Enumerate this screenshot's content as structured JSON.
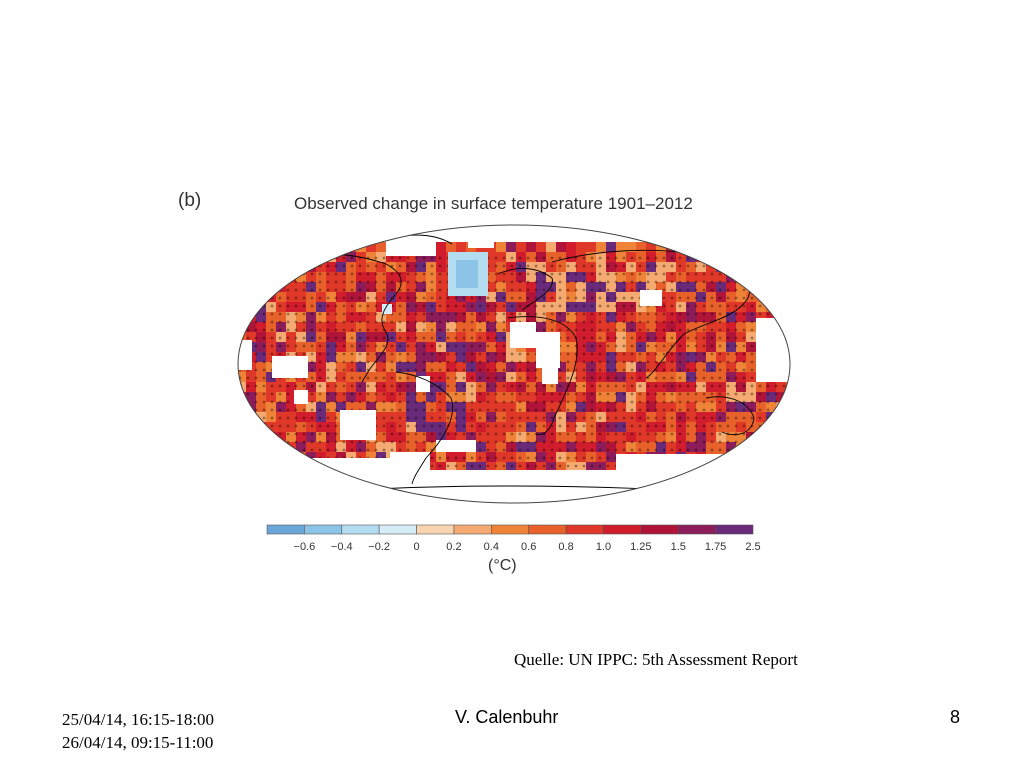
{
  "figure": {
    "panel_label": "(b)",
    "title": "Observed change in surface temperature 1901–2012"
  },
  "chart_data": {
    "type": "heatmap",
    "title": "Observed change in surface temperature 1901–2012",
    "legend": {
      "unit": "(°C)",
      "tick_labels": [
        "−0.6",
        "−0.4",
        "−0.2",
        "0",
        "0.2",
        "0.4",
        "0.6",
        "0.8",
        "1.0",
        "1.25",
        "1.5",
        "1.75",
        "2.5"
      ],
      "bins": [
        {
          "color": "#6aa6d8"
        },
        {
          "color": "#8cc4e8"
        },
        {
          "color": "#b4dcf0"
        },
        {
          "color": "#d6ecf6"
        },
        {
          "color": "#f8d4b0"
        },
        {
          "color": "#f4aa70"
        },
        {
          "color": "#ef8438"
        },
        {
          "color": "#e8602a"
        },
        {
          "color": "#e03828"
        },
        {
          "color": "#d01c2c"
        },
        {
          "color": "#b01438"
        },
        {
          "color": "#8c1c5a"
        },
        {
          "color": "#6a2a7a"
        }
      ]
    },
    "stipple_marker": "+",
    "missing_data_color": "#ffffff"
  },
  "source": {
    "text": "Quelle: UN IPPC: 5th Assessment Report"
  },
  "footer": {
    "date_line_1": "25/04/14, 16:15-18:00",
    "date_line_2": "26/04/14, 09:15-11:00",
    "author": "V. Calenbuhr",
    "page_number": "8"
  }
}
